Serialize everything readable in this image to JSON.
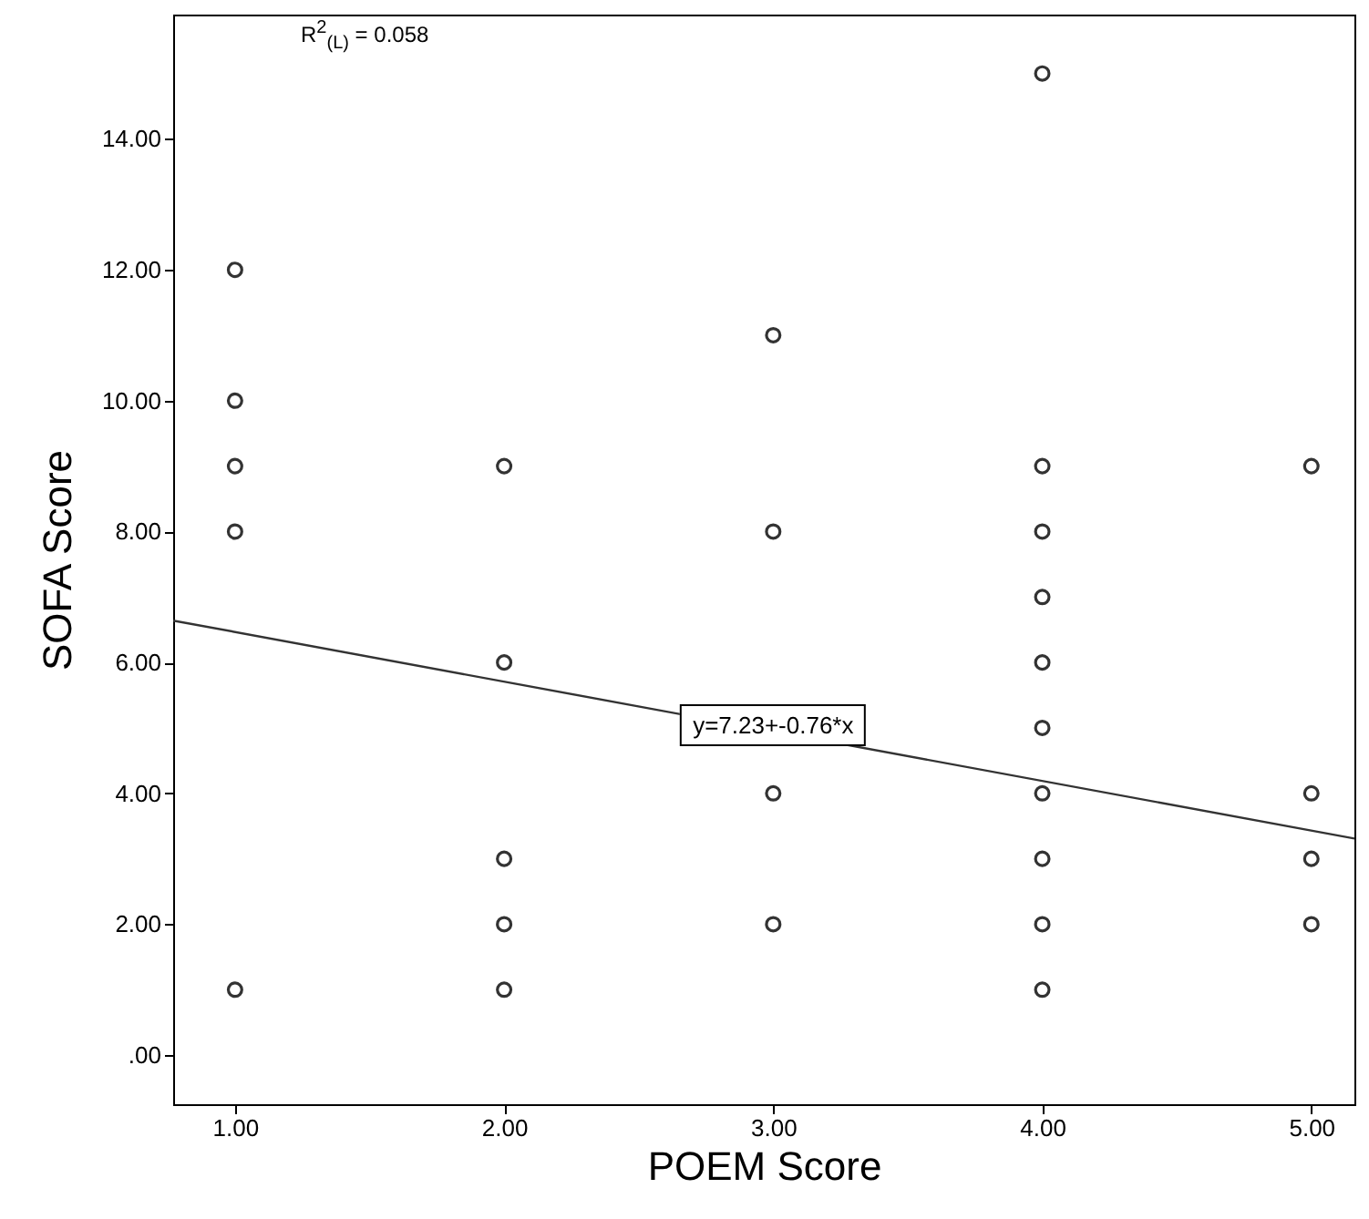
{
  "chart_data": {
    "type": "scatter",
    "xlabel": "POEM Score",
    "ylabel": "SOFA Score",
    "xlim": [
      0.77,
      5.16
    ],
    "ylim": [
      -0.75,
      15.9
    ],
    "xticks": [
      {
        "value": 1,
        "label": "1.00"
      },
      {
        "value": 2,
        "label": "2.00"
      },
      {
        "value": 3,
        "label": "3.00"
      },
      {
        "value": 4,
        "label": "4.00"
      },
      {
        "value": 5,
        "label": "5.00"
      }
    ],
    "yticks": [
      {
        "value": 0,
        "label": ".00"
      },
      {
        "value": 2,
        "label": "2.00"
      },
      {
        "value": 4,
        "label": "4.00"
      },
      {
        "value": 6,
        "label": "6.00"
      },
      {
        "value": 8,
        "label": "8.00"
      },
      {
        "value": 10,
        "label": "10.00"
      },
      {
        "value": 12,
        "label": "12.00"
      },
      {
        "value": 14,
        "label": "14.00"
      }
    ],
    "grid": false,
    "marker": "circle",
    "series": [
      {
        "color": "#333333",
        "x": [
          1,
          1,
          1,
          1,
          1,
          2,
          2,
          2,
          2,
          2,
          3,
          3,
          3,
          3,
          4,
          4,
          4,
          4,
          4,
          4,
          4,
          4,
          4,
          4,
          5,
          5,
          5,
          5
        ],
        "values": [
          12,
          10,
          9,
          8,
          1,
          9,
          6,
          3,
          2,
          1,
          11,
          8,
          4,
          2,
          15,
          9,
          8,
          7,
          6,
          5,
          4,
          3,
          2,
          1,
          9,
          4,
          3,
          2
        ]
      },
      {
        "type": "line",
        "color": "#333333",
        "line_style": "solid",
        "marker": "none",
        "x": [
          0.77,
          5.16
        ],
        "values": [
          6.64,
          3.31
        ]
      }
    ],
    "annotations": [
      "R$^{2}$$_{(L)}$ = 0.058",
      {
        "text": "y=7.23+-0.76*x",
        "x": 3,
        "y": 5.04
      }
    ]
  }
}
